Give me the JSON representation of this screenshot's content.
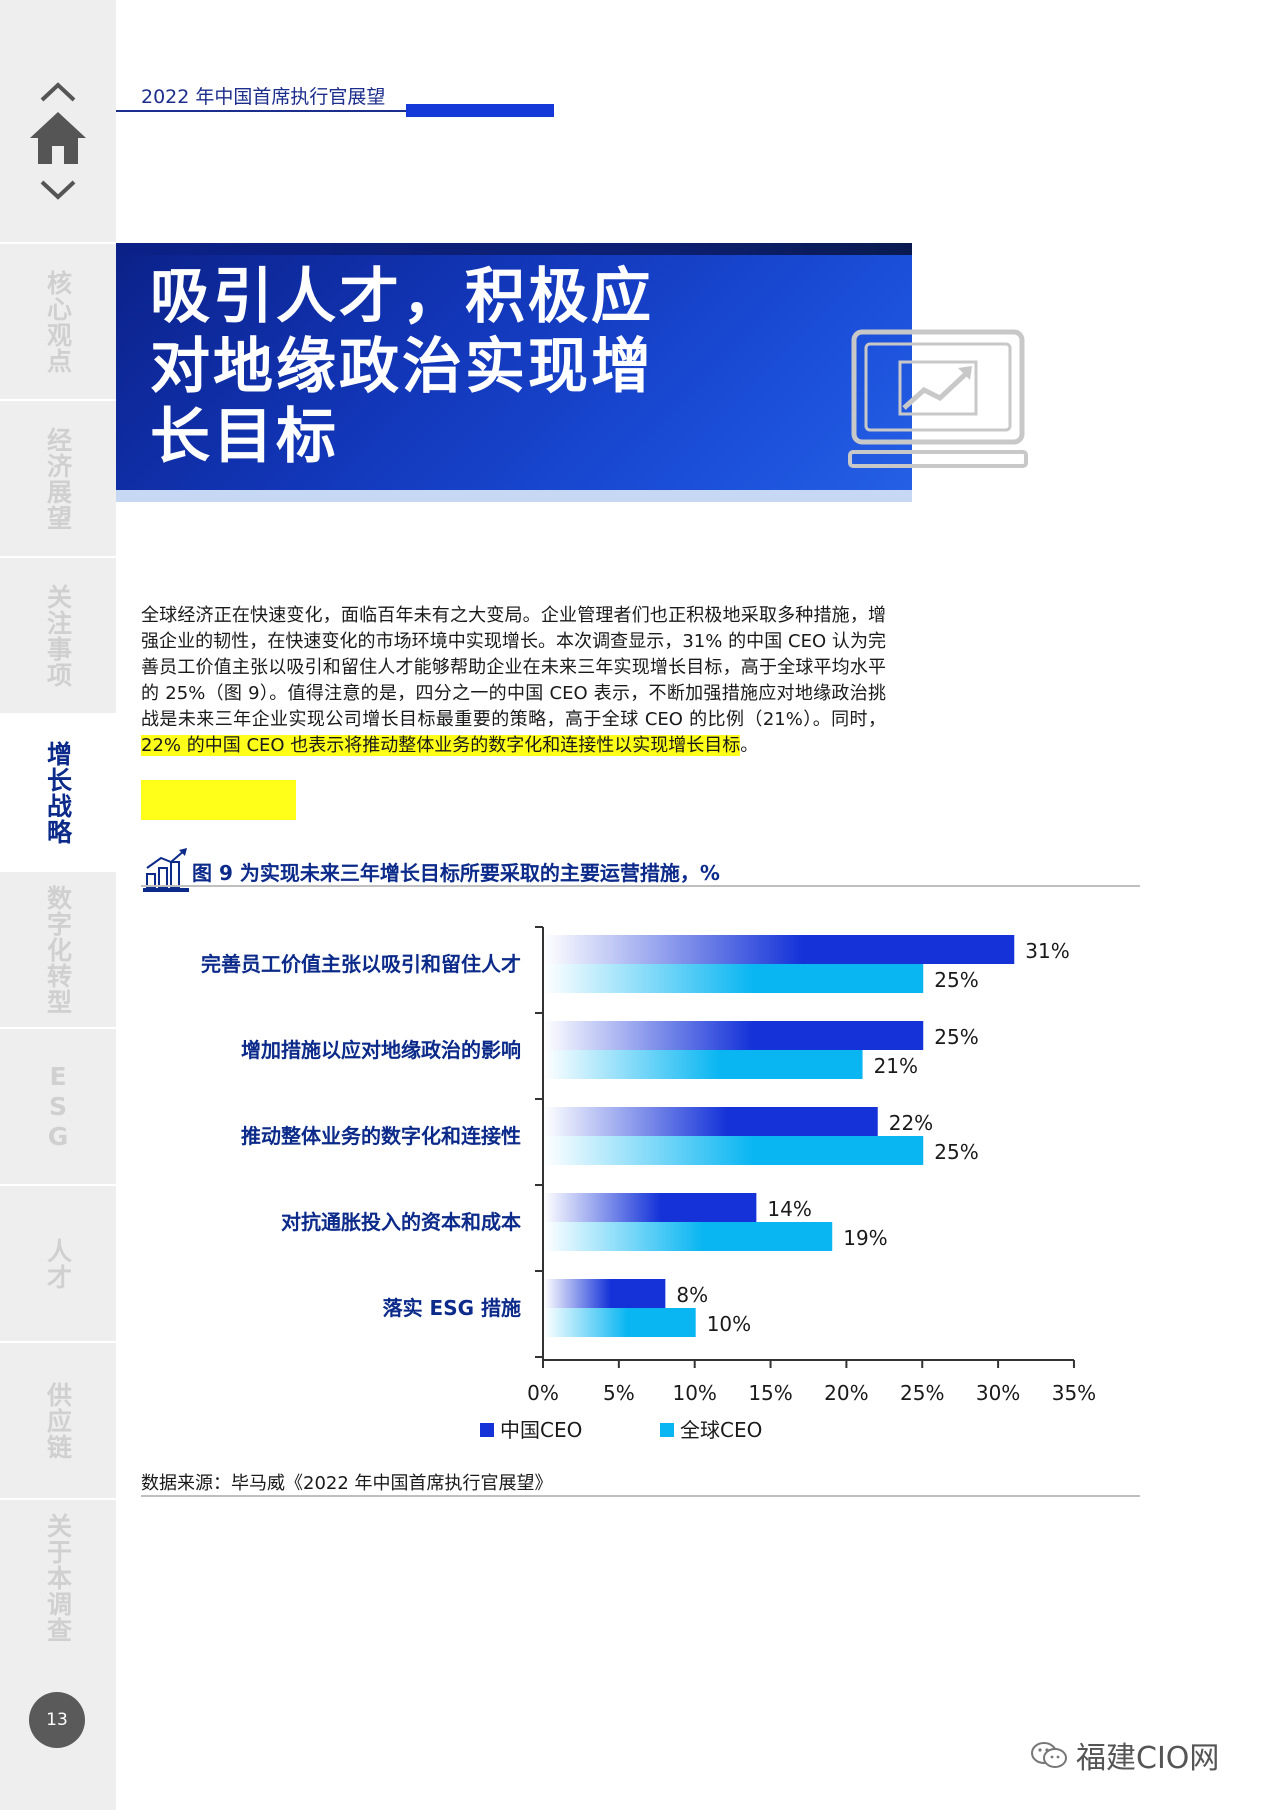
{
  "header": {
    "running_title": "2022 年中国首席执行官展望"
  },
  "sidebar": {
    "items": [
      {
        "label": "核心观点"
      },
      {
        "label": "经济展望"
      },
      {
        "label": "关注事项"
      },
      {
        "label": "增长战略",
        "active": true
      },
      {
        "label": "数字化转型"
      },
      {
        "label": "ESG"
      },
      {
        "label": "人才"
      },
      {
        "label": "供应链"
      },
      {
        "label": "关于本调查"
      }
    ],
    "page_number": "13"
  },
  "hero": {
    "title": "吸引人才，积极应对地缘政治实现增长目标"
  },
  "intro": {
    "text": "全球经济正在快速变化，面临百年未有之大变局。企业管理者们也正积极地采取多种措施，增强企业的韧性，在快速变化的市场环境中实现增长。本次调查显示，31% 的中国 CEO 认为完善员工价值主张以吸引和留住人才能够帮助企业在未来三年实现增长目标，高于全球平均水平的 25%（图 9）。值得注意的是，四分之一的中国 CEO 表示，不断加强措施应对地缘政治挑战是未来三年企业实现公司增长目标最重要的策略，高于全球 CEO 的比例（21%）。同时，",
    "highlight": "22% 的中国 CEO 也表示将推动整体业务的数字化和连接性以实现增长目标",
    "end": "。"
  },
  "figure": {
    "title": "图 9  为实现未来三年增长目标所要采取的主要运营措施，%"
  },
  "chart_data": {
    "type": "bar",
    "orientation": "horizontal",
    "categories": [
      "完善员工价值主张以吸引和留住人才",
      "增加措施以应对地缘政治的影响",
      "推动整体业务的数字化和连接性",
      "对抗通胀投入的资本和成本",
      "落实 ESG 措施"
    ],
    "series": [
      {
        "name": "中国CEO",
        "values": [
          31,
          25,
          22,
          14,
          8
        ],
        "labels": [
          "31%",
          "25%",
          "22%",
          "14%",
          "8%"
        ],
        "color": "#1432d8"
      },
      {
        "name": "全球CEO",
        "values": [
          25,
          21,
          25,
          19,
          10
        ],
        "labels": [
          "25%",
          "21%",
          "25%",
          "19%",
          "10%"
        ],
        "color": "#0ab6f2"
      }
    ],
    "x_ticks": [
      "0%",
      "5%",
      "10%",
      "15%",
      "20%",
      "25%",
      "30%",
      "35%"
    ],
    "xlim": [
      0,
      35
    ],
    "legend_position": "bottom",
    "grid": false
  },
  "source": "数据来源：毕马威《2022 年中国首席执行官展望》",
  "watermark": "福建CIO网",
  "colors": {
    "navy": "#0b2a8a",
    "china_ceo": "#1432d8",
    "global_ceo": "#0ab6f2",
    "highlight": "#ffff1a"
  }
}
